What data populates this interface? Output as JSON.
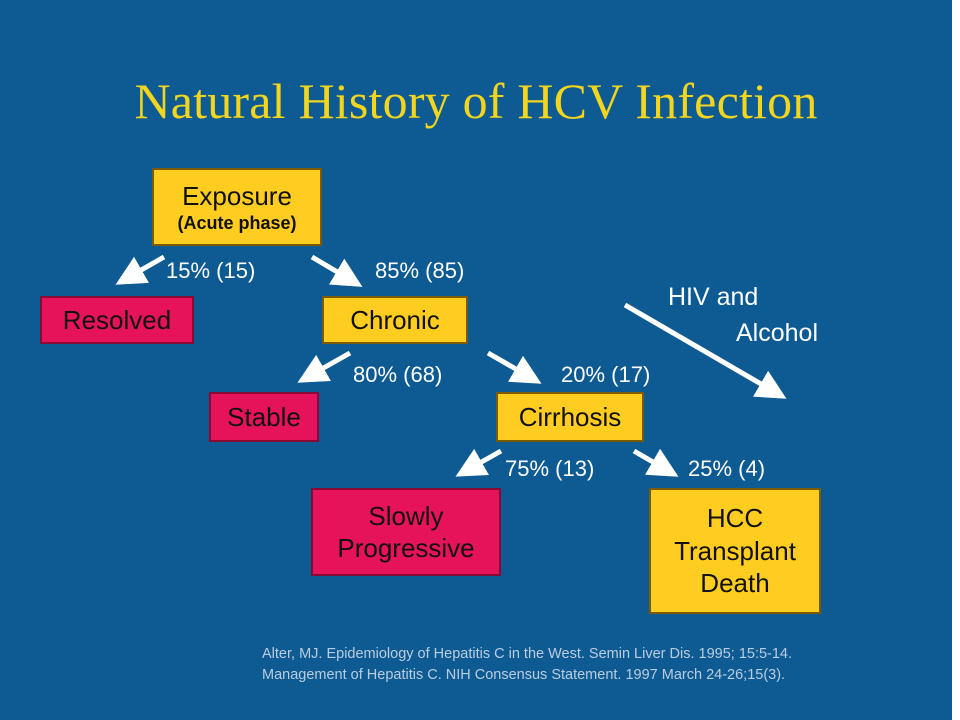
{
  "title": "Natural History of HCV Infection",
  "nodes": {
    "exposure": {
      "label": "Exposure",
      "sublabel": "(Acute phase)"
    },
    "resolved": {
      "label": "Resolved"
    },
    "chronic": {
      "label": "Chronic"
    },
    "stable": {
      "label": "Stable"
    },
    "cirrhosis": {
      "label": "Cirrhosis"
    },
    "slowly_progressive": {
      "line1": "Slowly",
      "line2": "Progressive"
    },
    "hcc": {
      "line1": "HCC",
      "line2": "Transplant",
      "line3": "Death"
    }
  },
  "edges": {
    "exposure_resolved": "15% (15)",
    "exposure_chronic": "85% (85)",
    "chronic_stable": "80% (68)",
    "chronic_cirrhosis": "20% (17)",
    "cirrhosis_slow": "75% (13)",
    "cirrhosis_hcc": "25% (4)"
  },
  "cofactor": {
    "line1": "HIV and",
    "line2": "Alcohol"
  },
  "citation": {
    "line1": "Alter, MJ.  Epidemiology of Hepatitis C in the West. Semin Liver Dis.  1995; 15:5-14.",
    "line2": "Management of Hepatitis C.  NIH Consensus Statement.  1997 March 24-26;15(3)."
  },
  "colors": {
    "background": "#0e5b93",
    "title": "#f2d51c",
    "yellow_box": "#ffcd1f",
    "pink_box": "#e6125a",
    "arrow": "#ffffff"
  }
}
